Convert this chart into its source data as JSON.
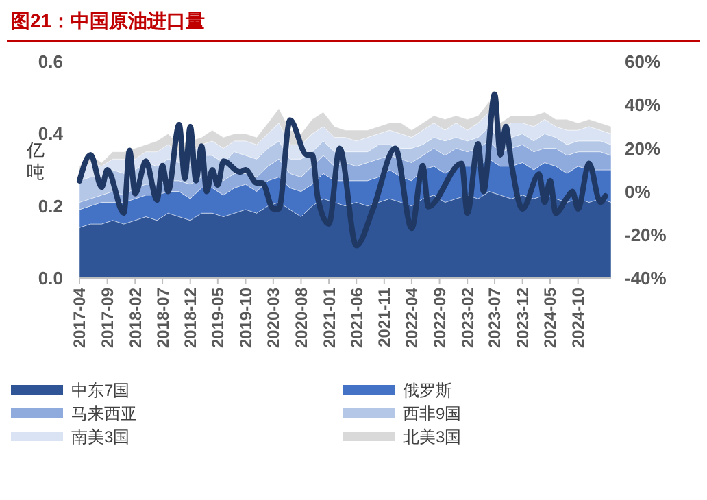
{
  "chart_data": {
    "type": "area",
    "stacked": true,
    "title": "图21：中国原油进口量",
    "ylabel": "亿吨",
    "x": [
      "2017-04",
      "2017-06",
      "2017-08",
      "2017-10",
      "2017-12",
      "2018-02",
      "2018-04",
      "2018-06",
      "2018-08",
      "2018-10",
      "2018-12",
      "2019-02",
      "2019-04",
      "2019-06",
      "2019-08",
      "2019-10",
      "2019-12",
      "2020-02",
      "2020-04",
      "2020-06",
      "2020-08",
      "2020-10",
      "2020-12",
      "2021-02",
      "2021-04",
      "2021-06",
      "2021-08",
      "2021-10",
      "2021-12",
      "2022-02",
      "2022-04",
      "2022-06",
      "2022-08",
      "2022-10",
      "2022-12",
      "2023-02",
      "2023-04",
      "2023-06",
      "2023-08",
      "2023-10",
      "2023-12",
      "2024-02",
      "2024-04",
      "2024-06",
      "2024-08",
      "2024-10",
      "2024-12",
      "2025-02",
      "2025-04"
    ],
    "xlim": [
      "2017-04",
      "2025-04"
    ],
    "xticks": [
      "2017-04",
      "2017-09",
      "2018-02",
      "2018-07",
      "2018-12",
      "2019-05",
      "2019-10",
      "2020-03",
      "2020-08",
      "2021-01",
      "2021-06",
      "2021-11",
      "2022-04",
      "2022-09",
      "2023-02",
      "2023-07",
      "2023-12",
      "2024-05",
      "2024-10"
    ],
    "ylim": [
      0,
      0.6
    ],
    "yticks": [
      {
        "value": 0,
        "label": "0.0"
      },
      {
        "value": 0.2,
        "label": "0.2"
      },
      {
        "value": 0.4,
        "label": "0.4"
      },
      {
        "value": 0.6,
        "label": "0.6"
      }
    ],
    "y2lim": [
      -40,
      60
    ],
    "y2ticks": [
      {
        "value": -40,
        "label": "-40%"
      },
      {
        "value": -20,
        "label": "-20%"
      },
      {
        "value": 0,
        "label": "0%"
      },
      {
        "value": 20,
        "label": "20%"
      },
      {
        "value": 40,
        "label": "40%"
      },
      {
        "value": 60,
        "label": "60%"
      }
    ],
    "legend": "bottom",
    "grid": false,
    "series": [
      {
        "name": "中东7国",
        "color": "#2f5597",
        "values": [
          0.14,
          0.15,
          0.15,
          0.16,
          0.15,
          0.16,
          0.17,
          0.16,
          0.18,
          0.17,
          0.16,
          0.18,
          0.18,
          0.17,
          0.18,
          0.19,
          0.18,
          0.2,
          0.21,
          0.19,
          0.17,
          0.2,
          0.22,
          0.21,
          0.2,
          0.21,
          0.2,
          0.21,
          0.22,
          0.21,
          0.2,
          0.22,
          0.23,
          0.21,
          0.22,
          0.23,
          0.22,
          0.24,
          0.23,
          0.22,
          0.23,
          0.22,
          0.23,
          0.22,
          0.21,
          0.22,
          0.21,
          0.22,
          0.21
        ]
      },
      {
        "name": "俄罗斯",
        "color": "#4472c4",
        "values": [
          0.05,
          0.05,
          0.06,
          0.05,
          0.06,
          0.06,
          0.06,
          0.07,
          0.06,
          0.07,
          0.06,
          0.07,
          0.07,
          0.06,
          0.07,
          0.07,
          0.06,
          0.07,
          0.07,
          0.06,
          0.07,
          0.06,
          0.07,
          0.06,
          0.07,
          0.06,
          0.07,
          0.07,
          0.08,
          0.07,
          0.07,
          0.08,
          0.08,
          0.08,
          0.09,
          0.08,
          0.09,
          0.09,
          0.08,
          0.09,
          0.09,
          0.08,
          0.09,
          0.09,
          0.08,
          0.09,
          0.09,
          0.08,
          0.09
        ]
      },
      {
        "name": "马来西亚",
        "color": "#8faadc",
        "values": [
          0.02,
          0.02,
          0.02,
          0.03,
          0.02,
          0.03,
          0.03,
          0.03,
          0.03,
          0.03,
          0.04,
          0.03,
          0.04,
          0.04,
          0.04,
          0.03,
          0.04,
          0.04,
          0.05,
          0.04,
          0.04,
          0.05,
          0.05,
          0.04,
          0.05,
          0.04,
          0.05,
          0.05,
          0.04,
          0.05,
          0.05,
          0.04,
          0.05,
          0.05,
          0.05,
          0.04,
          0.05,
          0.05,
          0.04,
          0.05,
          0.05,
          0.05,
          0.04,
          0.05,
          0.05,
          0.04,
          0.05,
          0.05,
          0.04
        ]
      },
      {
        "name": "西非9国",
        "color": "#b4c7e7",
        "values": [
          0.06,
          0.06,
          0.05,
          0.06,
          0.06,
          0.05,
          0.06,
          0.05,
          0.06,
          0.05,
          0.05,
          0.06,
          0.05,
          0.05,
          0.06,
          0.05,
          0.05,
          0.05,
          0.05,
          0.04,
          0.05,
          0.04,
          0.04,
          0.04,
          0.03,
          0.04,
          0.03,
          0.04,
          0.03,
          0.03,
          0.04,
          0.03,
          0.03,
          0.04,
          0.03,
          0.03,
          0.03,
          0.04,
          0.03,
          0.03,
          0.03,
          0.03,
          0.04,
          0.03,
          0.03,
          0.03,
          0.03,
          0.03,
          0.03
        ]
      },
      {
        "name": "南美3国",
        "color": "#dae3f3",
        "values": [
          0.03,
          0.04,
          0.03,
          0.03,
          0.04,
          0.03,
          0.03,
          0.04,
          0.04,
          0.03,
          0.04,
          0.03,
          0.04,
          0.04,
          0.03,
          0.04,
          0.04,
          0.04,
          0.05,
          0.04,
          0.04,
          0.05,
          0.04,
          0.04,
          0.04,
          0.03,
          0.04,
          0.03,
          0.04,
          0.04,
          0.03,
          0.04,
          0.04,
          0.03,
          0.04,
          0.03,
          0.04,
          0.04,
          0.03,
          0.04,
          0.03,
          0.04,
          0.04,
          0.03,
          0.04,
          0.03,
          0.04,
          0.03,
          0.03
        ]
      },
      {
        "name": "北美3国",
        "color": "#d9d9d9",
        "values": [
          0.01,
          0.02,
          0.01,
          0.02,
          0.02,
          0.03,
          0.02,
          0.03,
          0.03,
          0.02,
          0.03,
          0.02,
          0.03,
          0.03,
          0.02,
          0.02,
          0.02,
          0.03,
          0.04,
          0.04,
          0.03,
          0.04,
          0.04,
          0.03,
          0.02,
          0.03,
          0.02,
          0.02,
          0.02,
          0.03,
          0.02,
          0.02,
          0.02,
          0.03,
          0.02,
          0.03,
          0.02,
          0.03,
          0.02,
          0.02,
          0.02,
          0.03,
          0.02,
          0.02,
          0.03,
          0.02,
          0.02,
          0.02,
          0.02
        ]
      },
      {
        "type": "line",
        "axis": "y2",
        "color": "#1f3864",
        "x": [
          "2017-04",
          "2017-06",
          "2017-08",
          "2017-09",
          "2017-12",
          "2018-01",
          "2018-02",
          "2018-04",
          "2018-06",
          "2018-07",
          "2018-08",
          "2018-10",
          "2018-11",
          "2018-12",
          "2019-01",
          "2019-02",
          "2019-03",
          "2019-04",
          "2019-05",
          "2019-06",
          "2019-09",
          "2019-10",
          "2019-12",
          "2020-01",
          "2020-03",
          "2020-04",
          "2020-06",
          "2020-09",
          "2020-10",
          "2020-11",
          "2021-01",
          "2021-03",
          "2021-06",
          "2021-09",
          "2022-01",
          "2022-04",
          "2022-06",
          "2022-07",
          "2023-01",
          "2023-02",
          "2023-04",
          "2023-05",
          "2023-07",
          "2023-08",
          "2023-09",
          "2023-10",
          "2023-12",
          "2024-03",
          "2024-04",
          "2024-05",
          "2024-06",
          "2024-08",
          "2024-09",
          "2024-10",
          "2024-12",
          "2025-02",
          "2025-03"
        ],
        "values": [
          5,
          17,
          2,
          10,
          -10,
          19,
          -1,
          14,
          -4,
          12,
          0,
          31,
          6,
          30,
          5,
          21,
          0,
          10,
          3,
          14,
          9,
          10,
          4,
          4,
          -8,
          -8,
          33,
          17,
          17,
          -3,
          -15,
          20,
          -25,
          -8,
          20,
          -17,
          12,
          -7,
          13,
          -10,
          22,
          0,
          45,
          17,
          30,
          13,
          -8,
          8,
          -5,
          5,
          -10,
          -3,
          0,
          -8,
          13,
          -5,
          -2
        ]
      }
    ]
  }
}
